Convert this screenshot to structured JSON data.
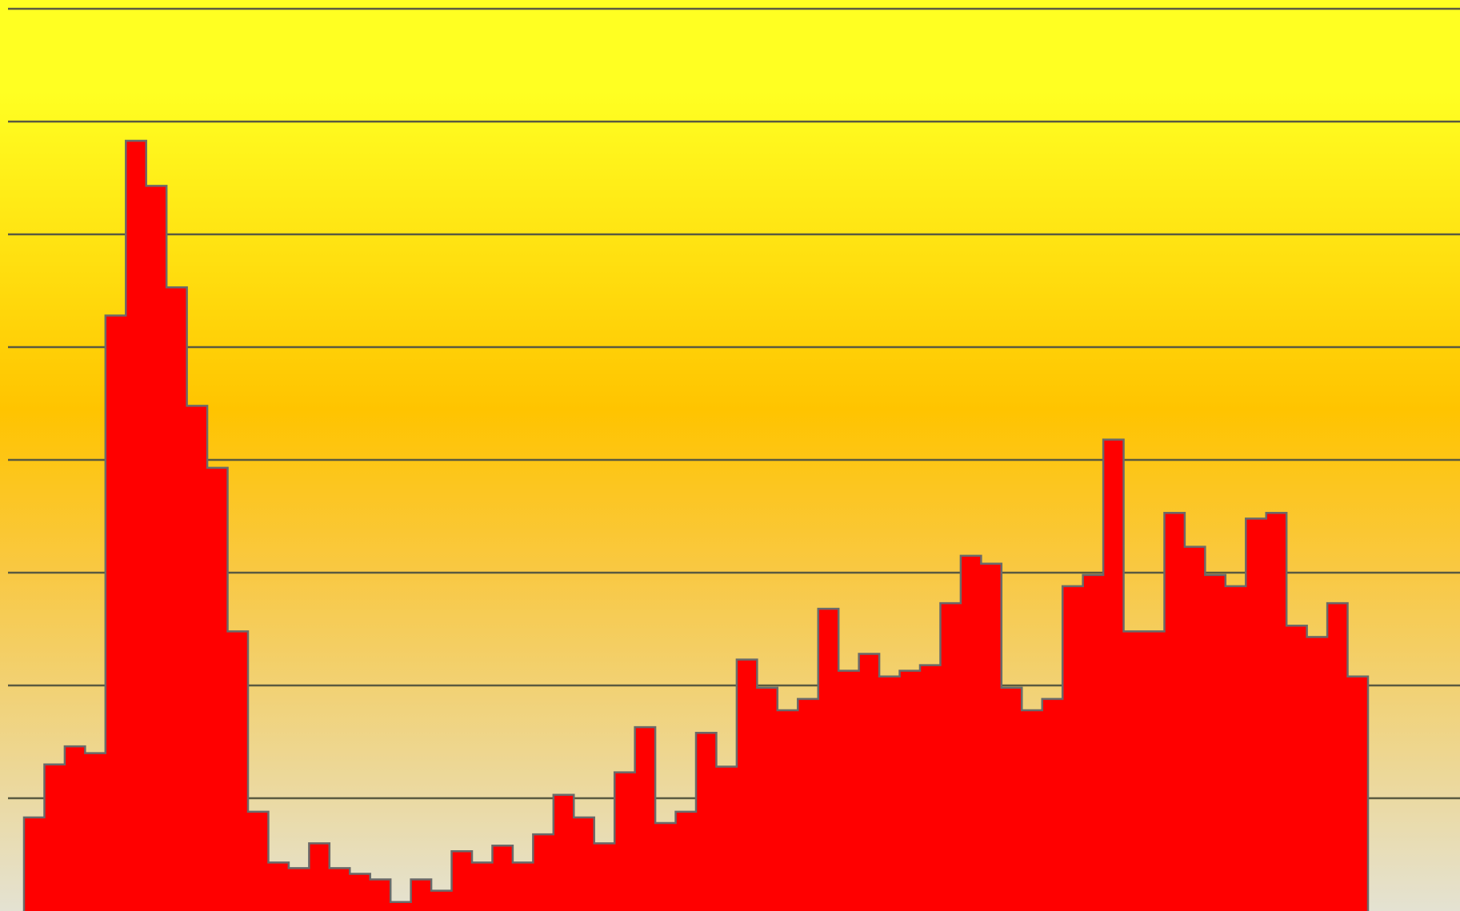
{
  "chart_data": {
    "type": "area",
    "title": "",
    "xlabel": "",
    "ylabel": "",
    "ylim": [
      0,
      8
    ],
    "grid": true,
    "legend": "none",
    "series": [
      {
        "values": [
          0.83,
          1.3,
          1.46,
          1.4,
          5.28,
          6.83,
          6.43,
          5.53,
          4.48,
          3.93,
          2.48,
          0.88,
          0.43,
          0.38,
          0.6,
          0.38,
          0.33,
          0.28,
          0.08,
          0.28,
          0.18,
          0.53,
          0.43,
          0.58,
          0.43,
          0.68,
          1.03,
          0.83,
          0.6,
          1.23,
          1.63,
          0.78,
          0.88,
          1.58,
          1.28,
          2.23,
          1.98,
          1.78,
          1.88,
          2.68,
          2.13,
          2.28,
          2.08,
          2.13,
          2.18,
          2.73,
          3.15,
          3.08,
          1.98,
          1.78,
          1.88,
          2.88,
          2.98,
          4.18,
          2.48,
          2.48,
          3.53,
          3.23,
          2.98,
          2.88,
          3.48,
          3.53,
          2.53,
          2.43,
          2.73,
          2.08
        ]
      }
    ],
    "colors": {
      "fill": "#ff0000",
      "outline": "#6a6a6a",
      "gridline": "#5a5a40",
      "background_top": "#ffff22",
      "background_middle": "#ffc400",
      "background_bottom": "#e4e2d2"
    }
  }
}
